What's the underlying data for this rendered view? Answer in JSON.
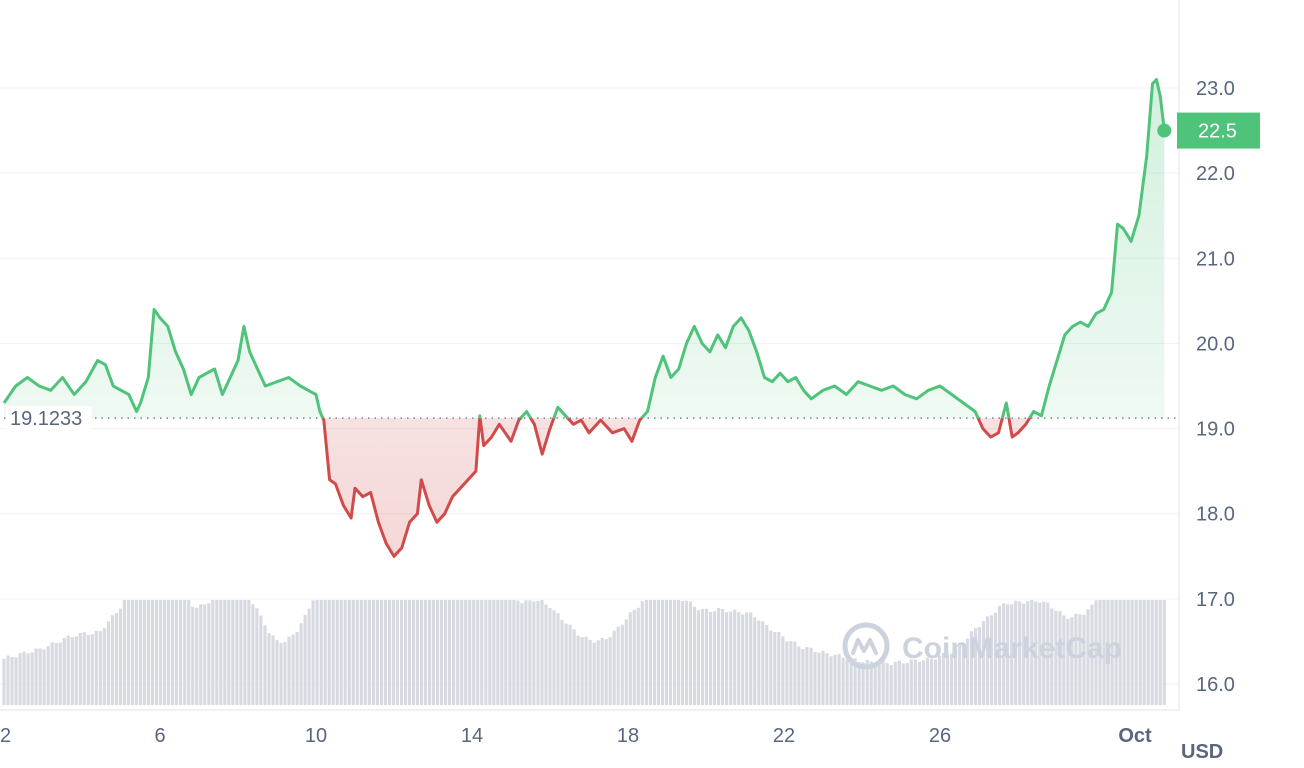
{
  "chart_data": {
    "type": "area",
    "currency_label": "USD",
    "baseline_value": 19.1233,
    "baseline_label": "19.1233",
    "current_price_label": "22.5",
    "current_price": 22.5,
    "y_ticks": [
      "16.0",
      "17.0",
      "18.0",
      "19.0",
      "20.0",
      "21.0",
      "22.0",
      "23.0"
    ],
    "ylim": [
      15.7,
      24.0
    ],
    "x_ticks": [
      {
        "label": "2",
        "day": 2
      },
      {
        "label": "6",
        "day": 6
      },
      {
        "label": "10",
        "day": 10
      },
      {
        "label": "14",
        "day": 14
      },
      {
        "label": "18",
        "day": 18
      },
      {
        "label": "22",
        "day": 22
      },
      {
        "label": "26",
        "day": 26
      },
      {
        "label": "Oct",
        "day": 31,
        "bold": true
      }
    ],
    "xlim": [
      2,
      31.9
    ],
    "price_points": [
      [
        2.0,
        19.3
      ],
      [
        2.3,
        19.5
      ],
      [
        2.6,
        19.6
      ],
      [
        2.9,
        19.5
      ],
      [
        3.2,
        19.45
      ],
      [
        3.5,
        19.6
      ],
      [
        3.8,
        19.4
      ],
      [
        4.1,
        19.55
      ],
      [
        4.4,
        19.8
      ],
      [
        4.6,
        19.75
      ],
      [
        4.8,
        19.5
      ],
      [
        5.0,
        19.45
      ],
      [
        5.2,
        19.4
      ],
      [
        5.4,
        19.2
      ],
      [
        5.5,
        19.3
      ],
      [
        5.7,
        19.6
      ],
      [
        5.85,
        20.4
      ],
      [
        6.0,
        20.3
      ],
      [
        6.2,
        20.2
      ],
      [
        6.4,
        19.9
      ],
      [
        6.6,
        19.7
      ],
      [
        6.8,
        19.4
      ],
      [
        7.0,
        19.6
      ],
      [
        7.2,
        19.65
      ],
      [
        7.4,
        19.7
      ],
      [
        7.6,
        19.4
      ],
      [
        7.8,
        19.6
      ],
      [
        8.0,
        19.8
      ],
      [
        8.15,
        20.2
      ],
      [
        8.3,
        19.9
      ],
      [
        8.5,
        19.7
      ],
      [
        8.7,
        19.5
      ],
      [
        9.0,
        19.55
      ],
      [
        9.3,
        19.6
      ],
      [
        9.6,
        19.5
      ],
      [
        9.8,
        19.45
      ],
      [
        10.0,
        19.4
      ],
      [
        10.1,
        19.2
      ],
      [
        10.2,
        19.1
      ],
      [
        10.35,
        18.4
      ],
      [
        10.5,
        18.35
      ],
      [
        10.7,
        18.1
      ],
      [
        10.9,
        17.95
      ],
      [
        11.0,
        18.3
      ],
      [
        11.2,
        18.2
      ],
      [
        11.4,
        18.25
      ],
      [
        11.6,
        17.9
      ],
      [
        11.8,
        17.65
      ],
      [
        12.0,
        17.5
      ],
      [
        12.2,
        17.6
      ],
      [
        12.4,
        17.9
      ],
      [
        12.6,
        18.0
      ],
      [
        12.7,
        18.4
      ],
      [
        12.9,
        18.1
      ],
      [
        13.1,
        17.9
      ],
      [
        13.3,
        18.0
      ],
      [
        13.5,
        18.2
      ],
      [
        13.7,
        18.3
      ],
      [
        13.9,
        18.4
      ],
      [
        14.1,
        18.5
      ],
      [
        14.2,
        19.15
      ],
      [
        14.3,
        18.8
      ],
      [
        14.5,
        18.9
      ],
      [
        14.7,
        19.05
      ],
      [
        15.0,
        18.85
      ],
      [
        15.2,
        19.1
      ],
      [
        15.4,
        19.2
      ],
      [
        15.6,
        19.05
      ],
      [
        15.8,
        18.7
      ],
      [
        16.0,
        19.0
      ],
      [
        16.2,
        19.25
      ],
      [
        16.4,
        19.15
      ],
      [
        16.6,
        19.05
      ],
      [
        16.8,
        19.1
      ],
      [
        17.0,
        18.95
      ],
      [
        17.3,
        19.1
      ],
      [
        17.6,
        18.95
      ],
      [
        17.9,
        19.0
      ],
      [
        18.1,
        18.85
      ],
      [
        18.3,
        19.1
      ],
      [
        18.5,
        19.2
      ],
      [
        18.7,
        19.6
      ],
      [
        18.9,
        19.85
      ],
      [
        19.1,
        19.6
      ],
      [
        19.3,
        19.7
      ],
      [
        19.5,
        20.0
      ],
      [
        19.7,
        20.2
      ],
      [
        19.9,
        20.0
      ],
      [
        20.1,
        19.9
      ],
      [
        20.3,
        20.1
      ],
      [
        20.5,
        19.95
      ],
      [
        20.7,
        20.2
      ],
      [
        20.9,
        20.3
      ],
      [
        21.1,
        20.15
      ],
      [
        21.3,
        19.9
      ],
      [
        21.5,
        19.6
      ],
      [
        21.7,
        19.55
      ],
      [
        21.9,
        19.65
      ],
      [
        22.1,
        19.55
      ],
      [
        22.3,
        19.6
      ],
      [
        22.5,
        19.45
      ],
      [
        22.7,
        19.35
      ],
      [
        23.0,
        19.45
      ],
      [
        23.3,
        19.5
      ],
      [
        23.6,
        19.4
      ],
      [
        23.9,
        19.55
      ],
      [
        24.2,
        19.5
      ],
      [
        24.5,
        19.45
      ],
      [
        24.8,
        19.5
      ],
      [
        25.1,
        19.4
      ],
      [
        25.4,
        19.35
      ],
      [
        25.7,
        19.45
      ],
      [
        26.0,
        19.5
      ],
      [
        26.3,
        19.4
      ],
      [
        26.6,
        19.3
      ],
      [
        26.9,
        19.2
      ],
      [
        27.1,
        19.0
      ],
      [
        27.3,
        18.9
      ],
      [
        27.5,
        18.95
      ],
      [
        27.7,
        19.3
      ],
      [
        27.85,
        18.9
      ],
      [
        28.0,
        18.95
      ],
      [
        28.2,
        19.05
      ],
      [
        28.4,
        19.2
      ],
      [
        28.6,
        19.15
      ],
      [
        28.8,
        19.5
      ],
      [
        29.0,
        19.8
      ],
      [
        29.2,
        20.1
      ],
      [
        29.4,
        20.2
      ],
      [
        29.6,
        20.25
      ],
      [
        29.8,
        20.2
      ],
      [
        30.0,
        20.35
      ],
      [
        30.2,
        20.4
      ],
      [
        30.4,
        20.6
      ],
      [
        30.55,
        21.4
      ],
      [
        30.7,
        21.35
      ],
      [
        30.9,
        21.2
      ],
      [
        31.1,
        21.5
      ],
      [
        31.3,
        22.2
      ],
      [
        31.45,
        23.05
      ],
      [
        31.55,
        23.1
      ],
      [
        31.65,
        22.9
      ],
      [
        31.75,
        22.5
      ]
    ]
  },
  "watermark": {
    "brand": "CoinMarketCap"
  },
  "colors": {
    "up": "#16c784",
    "up_line": "#4fc37a",
    "down": "#d14b4b",
    "axis_text": "#58667e",
    "grid": "#eff2f5",
    "volume": "#cfd3da"
  },
  "icons": {
    "watermark_logo": "coinmarketcap-logo-icon"
  }
}
